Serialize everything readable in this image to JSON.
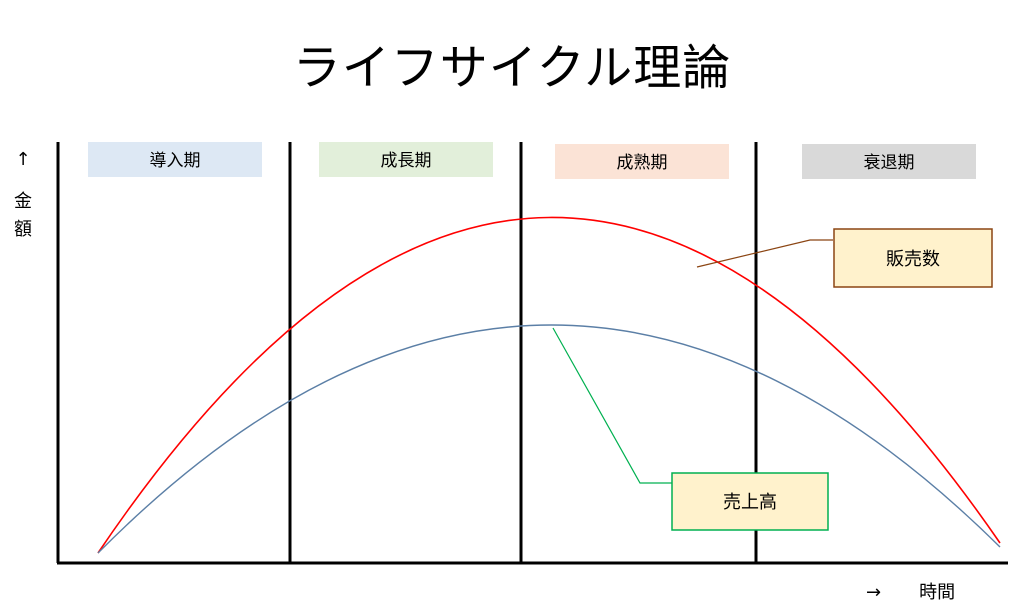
{
  "title": "ライフサイクル理論",
  "y_axis": {
    "arrow": "↑",
    "label_line1": "金",
    "label_line2": "額"
  },
  "x_axis": {
    "arrow": "→",
    "label": "時間"
  },
  "stages": [
    {
      "label": "導入期",
      "color": "#dde8f4"
    },
    {
      "label": "成長期",
      "color": "#e2efda"
    },
    {
      "label": "成熟期",
      "color": "#fbe3d6"
    },
    {
      "label": "衰退期",
      "color": "#d9d9d9"
    }
  ],
  "curves": [
    {
      "name": "販売数",
      "color": "#ff0000",
      "leader_color": "#8b4513",
      "label_bg": "#fff2cc",
      "label_border": "#8b4513"
    },
    {
      "name": "売上高",
      "color": "#5b7fa6",
      "leader_color": "#00b050",
      "label_bg": "#fff2cc",
      "label_border": "#00b050"
    }
  ]
}
